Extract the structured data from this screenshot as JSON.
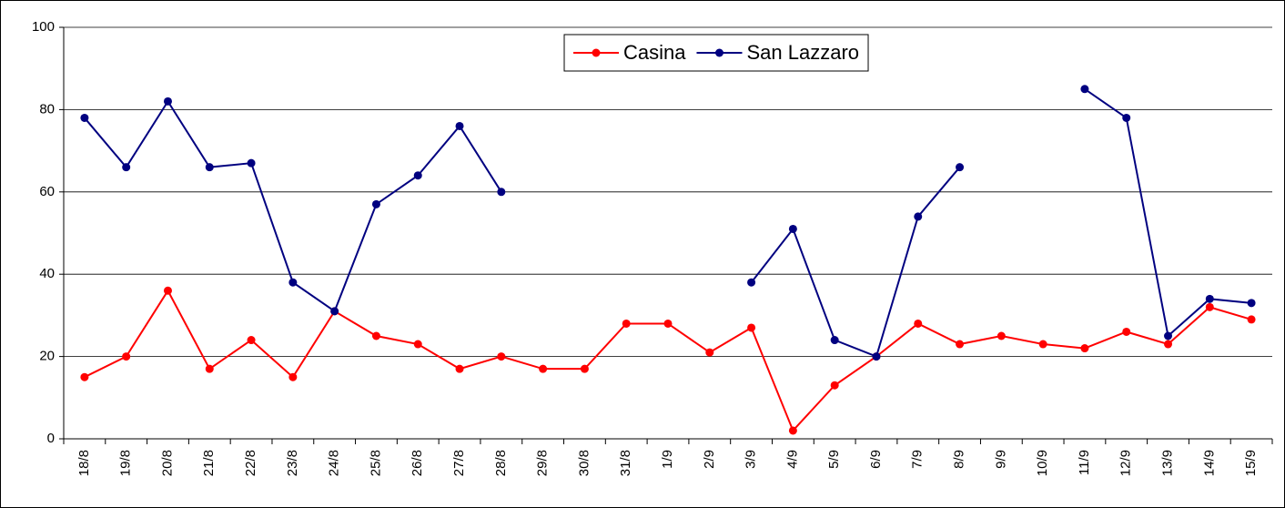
{
  "chart_data": {
    "type": "line",
    "categories": [
      "18/8",
      "19/8",
      "20/8",
      "21/8",
      "22/8",
      "23/8",
      "24/8",
      "25/8",
      "26/8",
      "27/8",
      "28/8",
      "29/8",
      "30/8",
      "31/8",
      "1/9",
      "2/9",
      "3/9",
      "4/9",
      "5/9",
      "6/9",
      "7/9",
      "8/9",
      "9/9",
      "10/9",
      "11/9",
      "12/9",
      "13/9",
      "14/9",
      "15/9"
    ],
    "series": [
      {
        "name": "Casina",
        "color": "#ff0000",
        "values": [
          15,
          20,
          36,
          17,
          24,
          15,
          31,
          25,
          23,
          17,
          20,
          17,
          17,
          28,
          28,
          21,
          27,
          2,
          13,
          20,
          28,
          23,
          25,
          23,
          22,
          26,
          23,
          32,
          29
        ]
      },
      {
        "name": "San Lazzaro",
        "color": "#000080",
        "values": [
          78,
          66,
          82,
          66,
          67,
          38,
          31,
          57,
          64,
          76,
          60,
          null,
          null,
          null,
          null,
          null,
          38,
          51,
          24,
          20,
          54,
          66,
          null,
          null,
          85,
          78,
          25,
          34,
          33
        ]
      }
    ],
    "ylim": [
      0,
      100
    ],
    "yticks": [
      0,
      20,
      40,
      60,
      80,
      100
    ],
    "grid": true,
    "legend": "upper center"
  }
}
